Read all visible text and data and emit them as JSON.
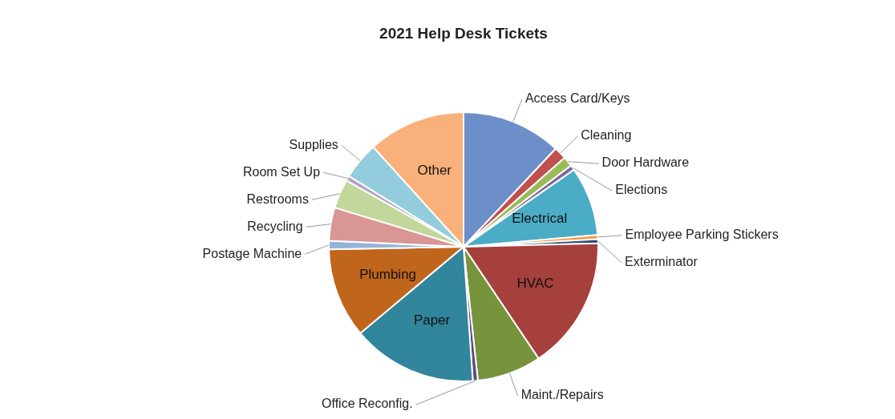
{
  "chart_data": {
    "type": "pie",
    "title": "2021 Help Desk Tickets",
    "categories": [
      "Access Card/Keys",
      "Cleaning",
      "Door Hardware",
      "Elections",
      "Electrical",
      "Employee Parking Stickers",
      "Exterminator",
      "HVAC",
      "Maint./Repairs",
      "Office Reconfig.",
      "Paper",
      "Plumbing",
      "Postage Machine",
      "Recycling",
      "Restrooms",
      "Room Set Up",
      "Supplies",
      "Other"
    ],
    "values": [
      12,
      1.5,
      1.2,
      0.6,
      8.3,
      0.5,
      0.5,
      16,
      7.7,
      0.6,
      15,
      10.8,
      1,
      4,
      3.5,
      0.6,
      4.5,
      11.7
    ],
    "colors": [
      "#6d8fc9",
      "#c0504d",
      "#9bbb59",
      "#8064a2",
      "#4bacc6",
      "#f79646",
      "#2c4d75",
      "#a5403d",
      "#77933c",
      "#5f4a7f",
      "#31859c",
      "#c0651c",
      "#95b3d7",
      "#d99694",
      "#c3d69b",
      "#b3a2c7",
      "#93cddd",
      "#fab07a"
    ],
    "data_labels": false
  }
}
